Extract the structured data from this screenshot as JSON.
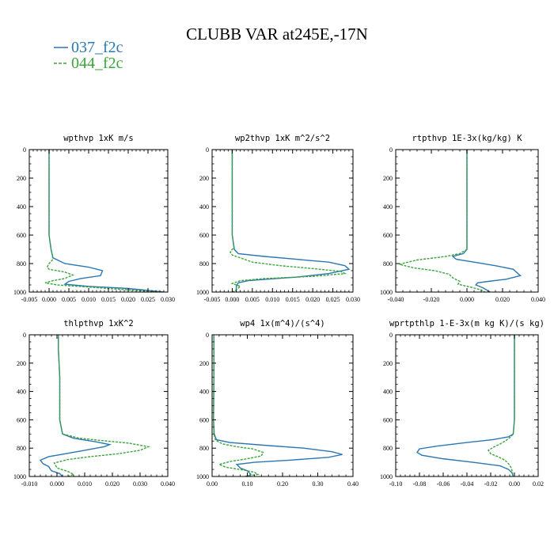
{
  "figure": {
    "title": "CLUBB VAR at245E,-17N",
    "legend": [
      {
        "label": "037_f2c",
        "color": "#2a77b4",
        "dash": "solid"
      },
      {
        "label": "044_f2c",
        "color": "#3aa53a",
        "dash": "dashed"
      }
    ]
  },
  "chart_data": [
    {
      "type": "line",
      "title": "wpthvp  1xK m/s",
      "xlim": [
        -0.005,
        0.03
      ],
      "xticks": [
        "-0.005",
        "0.000",
        "0.005",
        "0.010",
        "0.015",
        "0.020",
        "0.025",
        "0.030"
      ],
      "ylim": [
        1000,
        0
      ],
      "yticks": [
        "0",
        "200",
        "400",
        "600",
        "800",
        "1000"
      ],
      "series": [
        {
          "name": "037_f2c",
          "points": [
            [
              0.0,
              0
            ],
            [
              0.0,
              300
            ],
            [
              0.0,
              600
            ],
            [
              0.0005,
              700
            ],
            [
              0.001,
              760
            ],
            [
              0.004,
              800
            ],
            [
              0.01,
              825
            ],
            [
              0.0135,
              850
            ],
            [
              0.013,
              885
            ],
            [
              0.008,
              905
            ],
            [
              0.005,
              925
            ],
            [
              0.004,
              945
            ],
            [
              0.01,
              960
            ],
            [
              0.02,
              975
            ],
            [
              0.029,
              1000
            ]
          ]
        },
        {
          "name": "044_f2c",
          "points": [
            [
              0.0,
              0
            ],
            [
              0.0,
              300
            ],
            [
              0.0,
              600
            ],
            [
              0.0005,
              700
            ],
            [
              0.001,
              770
            ],
            [
              0.0,
              800
            ],
            [
              -0.0005,
              825
            ],
            [
              0.0,
              840
            ],
            [
              0.004,
              860
            ],
            [
              0.006,
              880
            ],
            [
              0.004,
              905
            ],
            [
              0.001,
              920
            ],
            [
              -0.001,
              935
            ],
            [
              0.002,
              950
            ],
            [
              0.01,
              965
            ],
            [
              0.02,
              985
            ],
            [
              0.028,
              1000
            ]
          ]
        }
      ]
    },
    {
      "type": "line",
      "title": "wp2thvp  1xK m^2/s^2",
      "xlim": [
        -0.005,
        0.03
      ],
      "xticks": [
        "-0.005",
        "0.000",
        "0.005",
        "0.010",
        "0.015",
        "0.020",
        "0.025",
        "0.030"
      ],
      "ylim": [
        1000,
        0
      ],
      "yticks": [
        "0",
        "200",
        "400",
        "600",
        "800",
        "1000"
      ],
      "series": [
        {
          "name": "037_f2c",
          "points": [
            [
              0.0,
              0
            ],
            [
              0.0,
              300
            ],
            [
              0.0,
              600
            ],
            [
              0.0005,
              700
            ],
            [
              0.0015,
              730
            ],
            [
              0.008,
              750
            ],
            [
              0.016,
              770
            ],
            [
              0.024,
              790
            ],
            [
              0.028,
              815
            ],
            [
              0.029,
              840
            ],
            [
              0.024,
              870
            ],
            [
              0.016,
              895
            ],
            [
              0.004,
              920
            ],
            [
              0.0015,
              935
            ],
            [
              0.001,
              960
            ],
            [
              0.001,
              1000
            ]
          ]
        },
        {
          "name": "044_f2c",
          "points": [
            [
              0.0,
              0
            ],
            [
              0.0,
              300
            ],
            [
              0.0,
              600
            ],
            [
              0.0005,
              690
            ],
            [
              0.0,
              700
            ],
            [
              -0.0005,
              720
            ],
            [
              0.0,
              740
            ],
            [
              0.002,
              760
            ],
            [
              0.005,
              790
            ],
            [
              0.012,
              815
            ],
            [
              0.02,
              835
            ],
            [
              0.027,
              855
            ],
            [
              0.028,
              870
            ],
            [
              0.02,
              890
            ],
            [
              0.008,
              905
            ],
            [
              0.002,
              920
            ],
            [
              0.0,
              940
            ],
            [
              0.002,
              960
            ],
            [
              0.001,
              985
            ],
            [
              0.0,
              1000
            ]
          ]
        }
      ]
    },
    {
      "type": "line",
      "title": "rtpthvp  1E-3x(kg/kg) K",
      "xlim": [
        -0.04,
        0.04
      ],
      "xticks": [
        "-0.040",
        "-0.020",
        "0.000",
        "0.020",
        "0.040"
      ],
      "ylim": [
        1000,
        0
      ],
      "yticks": [
        "0",
        "200",
        "400",
        "600",
        "800",
        "1000"
      ],
      "series": [
        {
          "name": "037_f2c",
          "points": [
            [
              0.0,
              0
            ],
            [
              0.0,
              300
            ],
            [
              0.0,
              600
            ],
            [
              0.0,
              700
            ],
            [
              -0.002,
              730
            ],
            [
              -0.008,
              750
            ],
            [
              -0.006,
              770
            ],
            [
              0.004,
              790
            ],
            [
              0.016,
              815
            ],
            [
              0.026,
              840
            ],
            [
              0.03,
              885
            ],
            [
              0.022,
              910
            ],
            [
              0.012,
              925
            ],
            [
              0.006,
              935
            ],
            [
              0.005,
              950
            ],
            [
              0.009,
              970
            ],
            [
              0.013,
              1000
            ]
          ]
        },
        {
          "name": "044_f2c",
          "points": [
            [
              0.0,
              0
            ],
            [
              0.0,
              300
            ],
            [
              0.0,
              600
            ],
            [
              0.0,
              700
            ],
            [
              -0.004,
              730
            ],
            [
              -0.012,
              750
            ],
            [
              -0.028,
              775
            ],
            [
              -0.038,
              805
            ],
            [
              -0.03,
              830
            ],
            [
              -0.018,
              850
            ],
            [
              -0.01,
              875
            ],
            [
              -0.008,
              900
            ],
            [
              -0.004,
              925
            ],
            [
              -0.005,
              945
            ],
            [
              0.002,
              965
            ],
            [
              0.008,
              985
            ],
            [
              0.01,
              1000
            ]
          ]
        }
      ]
    },
    {
      "type": "line",
      "title": "thlpthvp  1xK^2",
      "xlim": [
        -0.01,
        0.04
      ],
      "xticks": [
        "-0.010",
        "0.000",
        "0.010",
        "0.020",
        "0.030",
        "0.040"
      ],
      "ylim": [
        1000,
        0
      ],
      "yticks": [
        "0",
        "200",
        "400",
        "600",
        "800",
        "1000"
      ],
      "series": [
        {
          "name": "037_f2c",
          "points": [
            [
              0.0005,
              0
            ],
            [
              0.0005,
              100
            ],
            [
              0.001,
              300
            ],
            [
              0.001,
              600
            ],
            [
              0.002,
              700
            ],
            [
              0.006,
              730
            ],
            [
              0.014,
              755
            ],
            [
              0.019,
              775
            ],
            [
              0.017,
              790
            ],
            [
              0.01,
              815
            ],
            [
              0.003,
              840
            ],
            [
              -0.003,
              860
            ],
            [
              -0.006,
              885
            ],
            [
              -0.005,
              910
            ],
            [
              -0.003,
              930
            ],
            [
              -0.002,
              960
            ],
            [
              0.001,
              980
            ],
            [
              0.002,
              1000
            ]
          ]
        },
        {
          "name": "044_f2c",
          "points": [
            [
              0.0005,
              0
            ],
            [
              0.0005,
              100
            ],
            [
              0.001,
              300
            ],
            [
              0.001,
              600
            ],
            [
              0.002,
              700
            ],
            [
              0.008,
              730
            ],
            [
              0.018,
              750
            ],
            [
              0.026,
              765
            ],
            [
              0.033,
              790
            ],
            [
              0.03,
              815
            ],
            [
              0.022,
              840
            ],
            [
              0.012,
              860
            ],
            [
              0.004,
              880
            ],
            [
              -0.001,
              905
            ],
            [
              0.0,
              940
            ],
            [
              0.004,
              965
            ],
            [
              0.006,
              985
            ],
            [
              0.004,
              1000
            ]
          ]
        }
      ]
    },
    {
      "type": "line",
      "title": "wp4  1x(m^4)/(s^4)",
      "xlim": [
        0.0,
        0.4
      ],
      "xticks": [
        "0.00",
        "0.10",
        "0.20",
        "0.30",
        "0.40"
      ],
      "ylim": [
        1000,
        0
      ],
      "yticks": [
        "0",
        "200",
        "400",
        "600",
        "800",
        "1000"
      ],
      "series": [
        {
          "name": "037_f2c",
          "points": [
            [
              0.005,
              0
            ],
            [
              0.005,
              300
            ],
            [
              0.004,
              600
            ],
            [
              0.006,
              700
            ],
            [
              0.012,
              740
            ],
            [
              0.05,
              760
            ],
            [
              0.15,
              780
            ],
            [
              0.26,
              800
            ],
            [
              0.34,
              825
            ],
            [
              0.37,
              845
            ],
            [
              0.33,
              865
            ],
            [
              0.22,
              885
            ],
            [
              0.12,
              900
            ],
            [
              0.07,
              915
            ],
            [
              0.08,
              940
            ],
            [
              0.1,
              960
            ],
            [
              0.11,
              985
            ],
            [
              0.1,
              1000
            ]
          ]
        },
        {
          "name": "044_f2c",
          "points": [
            [
              0.005,
              0
            ],
            [
              0.005,
              300
            ],
            [
              0.004,
              600
            ],
            [
              0.005,
              700
            ],
            [
              0.01,
              745
            ],
            [
              0.03,
              770
            ],
            [
              0.07,
              790
            ],
            [
              0.115,
              805
            ],
            [
              0.145,
              830
            ],
            [
              0.14,
              855
            ],
            [
              0.1,
              875
            ],
            [
              0.05,
              895
            ],
            [
              0.02,
              915
            ],
            [
              0.04,
              935
            ],
            [
              0.09,
              955
            ],
            [
              0.12,
              970
            ],
            [
              0.13,
              985
            ],
            [
              0.09,
              1000
            ]
          ]
        }
      ]
    },
    {
      "type": "line",
      "title": "wprtpthlp  1-E-3x(m kg K)/(s kg)",
      "xlim": [
        -0.1,
        0.02
      ],
      "xticks": [
        "-0.10",
        "-0.08",
        "-0.06",
        "-0.04",
        "-0.02",
        "0.00",
        "0.02"
      ],
      "ylim": [
        1000,
        0
      ],
      "yticks": [
        "0",
        "200",
        "400",
        "600",
        "800",
        "1000"
      ],
      "series": [
        {
          "name": "037_f2c",
          "points": [
            [
              0.0,
              0
            ],
            [
              0.0,
              300
            ],
            [
              0.0,
              600
            ],
            [
              -0.001,
              700
            ],
            [
              -0.005,
              720
            ],
            [
              -0.018,
              740
            ],
            [
              -0.04,
              760
            ],
            [
              -0.065,
              785
            ],
            [
              -0.08,
              805
            ],
            [
              -0.082,
              830
            ],
            [
              -0.078,
              850
            ],
            [
              -0.06,
              875
            ],
            [
              -0.035,
              900
            ],
            [
              -0.012,
              925
            ],
            [
              -0.005,
              950
            ],
            [
              -0.002,
              975
            ],
            [
              -0.001,
              1000
            ]
          ]
        },
        {
          "name": "044_f2c",
          "points": [
            [
              0.0,
              0
            ],
            [
              0.0,
              300
            ],
            [
              0.0,
              600
            ],
            [
              -0.001,
              700
            ],
            [
              -0.003,
              720
            ],
            [
              -0.007,
              745
            ],
            [
              -0.012,
              770
            ],
            [
              -0.018,
              795
            ],
            [
              -0.022,
              815
            ],
            [
              -0.02,
              840
            ],
            [
              -0.014,
              860
            ],
            [
              -0.008,
              885
            ],
            [
              -0.005,
              910
            ],
            [
              -0.003,
              935
            ],
            [
              -0.002,
              960
            ],
            [
              -0.001,
              1000
            ]
          ]
        }
      ]
    }
  ]
}
